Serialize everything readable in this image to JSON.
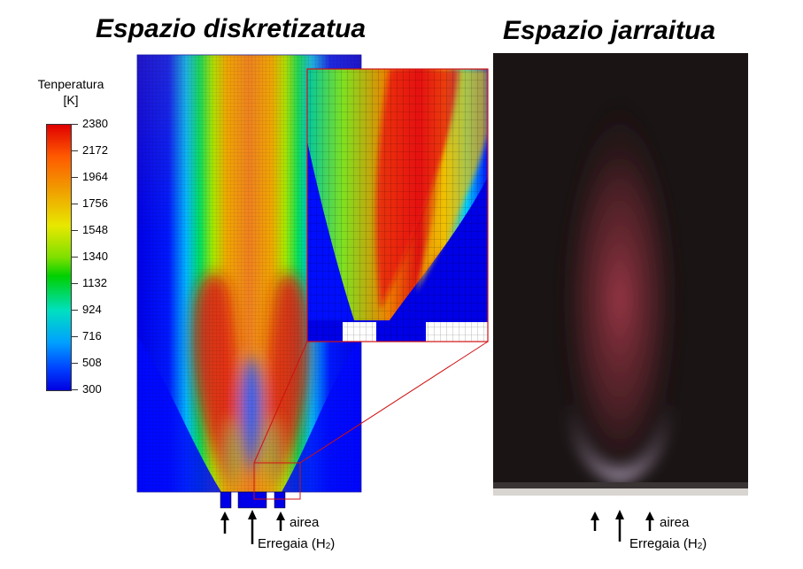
{
  "titles": {
    "left": "Espazio diskretizatua",
    "right": "Espazio jarraitua"
  },
  "colorbar": {
    "title_line1": "Tenperatura",
    "title_line2": "[K]",
    "ticks": [
      "2380",
      "2172",
      "1964",
      "1756",
      "1548",
      "1340",
      "1132",
      "924",
      "716",
      "508",
      "300"
    ]
  },
  "labels": {
    "air_left": "airea",
    "fuel_left": "Erregaia (H",
    "fuel_sub_left": "2",
    "fuel_close_left": ")",
    "air_right": "airea",
    "fuel_right": "Erregaia (H",
    "fuel_sub_right": "2",
    "fuel_close_right": ")"
  },
  "colors": {
    "hot": "#e00000",
    "cold": "#0000e0",
    "zoom_box": "#d01010",
    "photo_bg": "#1a1414"
  }
}
